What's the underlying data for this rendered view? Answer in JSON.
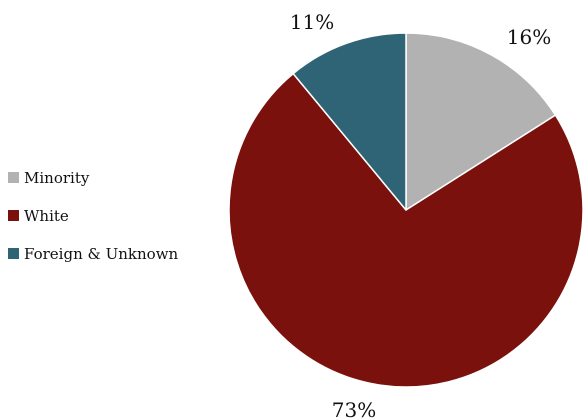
{
  "chart_data": {
    "type": "pie",
    "title": "",
    "categories": [
      "Minority",
      "White",
      "Foreign & Unknown"
    ],
    "values": [
      16,
      73,
      11
    ],
    "labels": [
      "16%",
      "73%",
      "11%"
    ],
    "colors": [
      "#b2b2b2",
      "#7a110d",
      "#2e6476"
    ],
    "legend_position": "left",
    "start_angle": "12 o'clock",
    "direction": "clockwise"
  }
}
